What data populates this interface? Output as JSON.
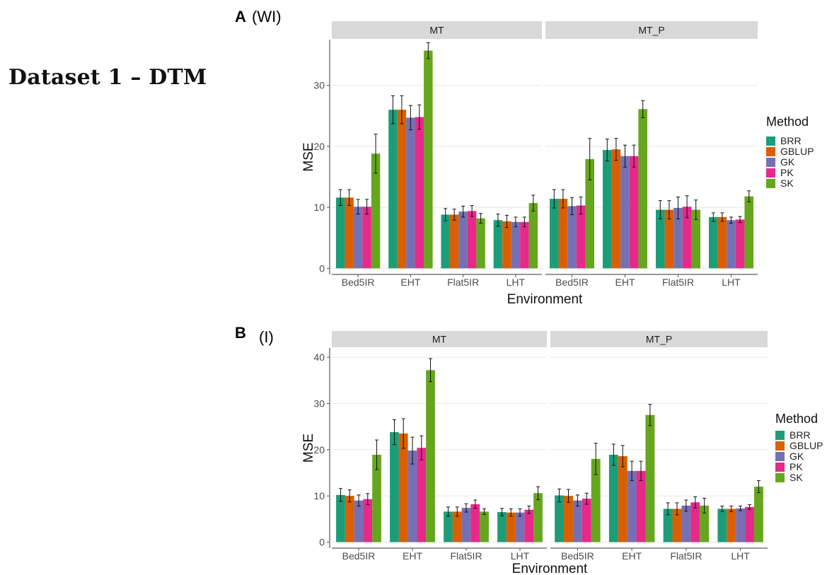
{
  "page": {
    "title": "Dataset 1 – DTM"
  },
  "panels": [
    {
      "letter": "A",
      "sub": "(WI)"
    },
    {
      "letter": "B",
      "sub": "(I)"
    }
  ],
  "colors": {
    "BRR": "#1b9e77",
    "GBLUP": "#d95f02",
    "GK": "#7570b3",
    "PK": "#e7298a",
    "SK": "#66a61e",
    "strip": "#d9d9d9",
    "grid": "#e8e8e8"
  },
  "chart_data": [
    {
      "type": "bar",
      "panel": "A",
      "facets": [
        "MT",
        "MT_P"
      ],
      "categories": [
        "Bed5IR",
        "EHT",
        "Flat5IR",
        "LHT"
      ],
      "xlabel": "Environment",
      "ylabel": "MSE",
      "ylim": [
        -1,
        37.5
      ],
      "yticks": [
        0,
        10,
        20,
        30
      ],
      "legend_title": "Method",
      "legend_position": "right",
      "grid": true,
      "series": [
        {
          "name": "BRR",
          "facet": "MT",
          "values": [
            11.6,
            26.0,
            8.8,
            7.9
          ],
          "err": [
            1.3,
            2.3,
            1.0,
            1.0
          ]
        },
        {
          "name": "GBLUP",
          "facet": "MT",
          "values": [
            11.6,
            26.0,
            8.8,
            7.7
          ],
          "err": [
            1.3,
            2.3,
            0.9,
            1.0
          ]
        },
        {
          "name": "GK",
          "facet": "MT",
          "values": [
            10.1,
            24.7,
            9.3,
            7.6
          ],
          "err": [
            1.2,
            2.0,
            0.9,
            0.8
          ]
        },
        {
          "name": "PK",
          "facet": "MT",
          "values": [
            10.1,
            24.8,
            9.4,
            7.6
          ],
          "err": [
            1.2,
            2.0,
            0.9,
            0.8
          ]
        },
        {
          "name": "SK",
          "facet": "MT",
          "values": [
            18.8,
            35.7,
            8.2,
            10.7
          ],
          "err": [
            3.2,
            1.3,
            0.8,
            1.3
          ]
        },
        {
          "name": "BRR",
          "facet": "MT_P",
          "values": [
            11.4,
            19.4,
            9.6,
            8.4
          ],
          "err": [
            1.5,
            1.8,
            1.5,
            0.7
          ]
        },
        {
          "name": "GBLUP",
          "facet": "MT_P",
          "values": [
            11.4,
            19.5,
            9.6,
            8.4
          ],
          "err": [
            1.5,
            1.8,
            1.5,
            0.7
          ]
        },
        {
          "name": "GK",
          "facet": "MT_P",
          "values": [
            10.2,
            18.4,
            9.9,
            7.9
          ],
          "err": [
            1.4,
            1.8,
            1.8,
            0.5
          ]
        },
        {
          "name": "PK",
          "facet": "MT_P",
          "values": [
            10.3,
            18.4,
            10.1,
            8.0
          ],
          "err": [
            1.4,
            1.8,
            1.8,
            0.5
          ]
        },
        {
          "name": "SK",
          "facet": "MT_P",
          "values": [
            17.9,
            26.1,
            9.6,
            11.8
          ],
          "err": [
            3.4,
            1.4,
            1.6,
            0.9
          ]
        }
      ]
    },
    {
      "type": "bar",
      "panel": "B",
      "facets": [
        "MT",
        "MT_P"
      ],
      "categories": [
        "Bed5IR",
        "EHT",
        "Flat5IR",
        "LHT"
      ],
      "xlabel": "Environment",
      "ylabel": "MSE",
      "ylim": [
        -1.3,
        42
      ],
      "yticks": [
        0,
        10,
        20,
        30,
        40
      ],
      "legend_title": "Method",
      "legend_position": "right",
      "grid": true,
      "series": [
        {
          "name": "BRR",
          "facet": "MT",
          "values": [
            10.2,
            23.8,
            6.6,
            6.5
          ],
          "err": [
            1.4,
            2.7,
            1.0,
            0.8
          ]
        },
        {
          "name": "GBLUP",
          "facet": "MT",
          "values": [
            10.0,
            23.5,
            6.6,
            6.4
          ],
          "err": [
            1.3,
            3.2,
            1.0,
            0.8
          ]
        },
        {
          "name": "GK",
          "facet": "MT",
          "values": [
            9.0,
            19.8,
            7.4,
            6.4
          ],
          "err": [
            1.2,
            2.9,
            0.9,
            0.8
          ]
        },
        {
          "name": "PK",
          "facet": "MT",
          "values": [
            9.3,
            20.4,
            8.2,
            7.0
          ],
          "err": [
            1.2,
            2.6,
            0.9,
            0.8
          ]
        },
        {
          "name": "SK",
          "facet": "MT",
          "values": [
            18.9,
            37.2,
            6.6,
            10.6
          ],
          "err": [
            3.2,
            2.5,
            0.6,
            1.4
          ]
        },
        {
          "name": "BRR",
          "facet": "MT_P",
          "values": [
            10.1,
            18.9,
            7.2,
            7.2
          ],
          "err": [
            1.4,
            2.3,
            1.3,
            0.6
          ]
        },
        {
          "name": "GBLUP",
          "facet": "MT_P",
          "values": [
            10.0,
            18.6,
            7.2,
            7.2
          ],
          "err": [
            1.4,
            2.3,
            1.3,
            0.6
          ]
        },
        {
          "name": "GK",
          "facet": "MT_P",
          "values": [
            9.0,
            15.4,
            7.9,
            7.3
          ],
          "err": [
            1.2,
            2.1,
            1.2,
            0.5
          ]
        },
        {
          "name": "PK",
          "facet": "MT_P",
          "values": [
            9.4,
            15.4,
            8.6,
            7.6
          ],
          "err": [
            1.2,
            2.1,
            1.2,
            0.5
          ]
        },
        {
          "name": "SK",
          "facet": "MT_P",
          "values": [
            18.0,
            27.5,
            7.9,
            12.0
          ],
          "err": [
            3.4,
            2.3,
            1.6,
            1.3
          ]
        }
      ]
    }
  ]
}
